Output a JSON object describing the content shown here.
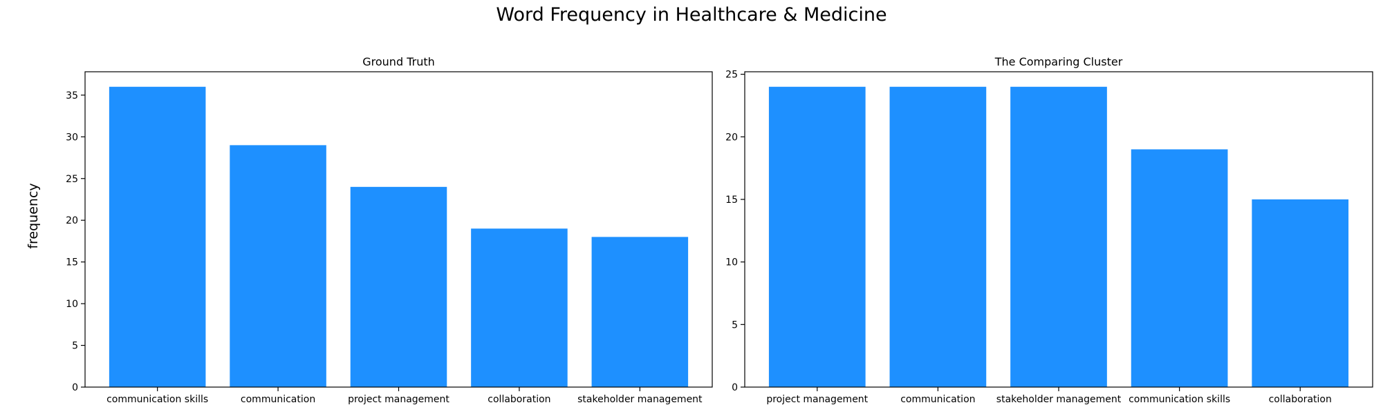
{
  "figure": {
    "title": "Word Frequency in Healthcare & Medicine",
    "ylabel": "frequency",
    "bar_color": "#1e90ff"
  },
  "chart_data": [
    {
      "type": "bar",
      "title": "Ground Truth",
      "categories": [
        "communication skills",
        "communication",
        "project management",
        "collaboration",
        "stakeholder management"
      ],
      "values": [
        36,
        29,
        24,
        19,
        18
      ],
      "ylim": [
        0,
        37.8
      ],
      "yticks": [
        0,
        5,
        10,
        15,
        20,
        25,
        30,
        35
      ],
      "grid": false
    },
    {
      "type": "bar",
      "title": "The Comparing Cluster",
      "categories": [
        "project management",
        "communication",
        "stakeholder management",
        "communication skills",
        "collaboration"
      ],
      "values": [
        24,
        24,
        24,
        19,
        15
      ],
      "ylim": [
        0,
        25.2
      ],
      "yticks": [
        0,
        5,
        10,
        15,
        20,
        25
      ],
      "grid": false
    }
  ]
}
